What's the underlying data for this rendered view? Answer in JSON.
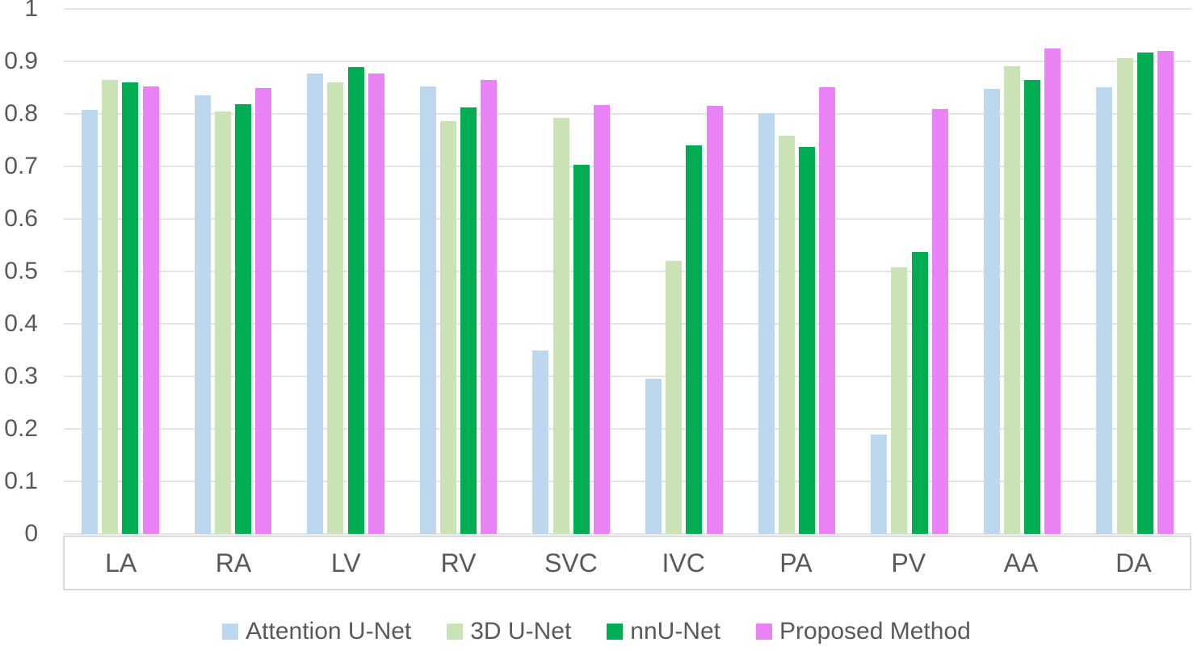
{
  "colors": {
    "grid": "#e4e4e4",
    "axis_text": "#595959",
    "strip_border": "#d9d9d9",
    "background": "#ffffff"
  },
  "chart_data": {
    "type": "bar",
    "title": "",
    "xlabel": "",
    "ylabel": "",
    "ylim": [
      0,
      1
    ],
    "ytick_interval": 0.1,
    "ytick_labels": [
      "0",
      "0.1",
      "0.2",
      "0.3",
      "0.4",
      "0.5",
      "0.6",
      "0.7",
      "0.8",
      "0.9",
      "1"
    ],
    "grid": "horizontal",
    "legend_position": "bottom",
    "categories": [
      "LA",
      "RA",
      "LV",
      "RV",
      "SVC",
      "IVC",
      "PA",
      "PV",
      "AA",
      "DA"
    ],
    "series": [
      {
        "name": "Attention U-Net",
        "color": "#bdd7ee",
        "values": [
          0.808,
          0.835,
          0.877,
          0.853,
          0.35,
          0.296,
          0.802,
          0.19,
          0.847,
          0.851
        ]
      },
      {
        "name": "3D U-Net",
        "color": "#c9e3b4",
        "values": [
          0.865,
          0.805,
          0.86,
          0.786,
          0.793,
          0.52,
          0.758,
          0.507,
          0.891,
          0.906
        ]
      },
      {
        "name": "nnU-Net",
        "color": "#00ad52",
        "values": [
          0.86,
          0.818,
          0.89,
          0.813,
          0.703,
          0.74,
          0.737,
          0.537,
          0.865,
          0.917
        ]
      },
      {
        "name": "Proposed Method",
        "color": "#e982f5",
        "values": [
          0.852,
          0.849,
          0.877,
          0.865,
          0.817,
          0.815,
          0.851,
          0.81,
          0.924,
          0.92
        ]
      }
    ]
  }
}
